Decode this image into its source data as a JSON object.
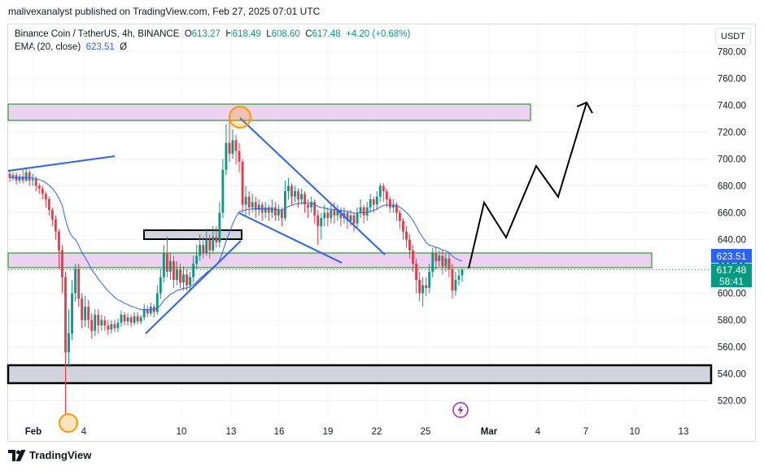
{
  "publisher_line": "malivexanalyst published on TradingView.com, Feb 27, 2025 07:01 UTC",
  "legend": {
    "symbol": "Binance Coin / TetherUS, 4h, BINANCE",
    "o_label": "O",
    "o_value": "613.27",
    "h_label": "H",
    "h_value": "618.49",
    "l_label": "L",
    "l_value": "608.60",
    "c_label": "C",
    "c_value": "617.48",
    "change": "+4.20 (+0.68%)"
  },
  "indicator": {
    "label": "EMA (20, close)",
    "value": "623.51",
    "icon": "Ø"
  },
  "currency_button": "USDT",
  "footer": {
    "brand": "TradingView",
    "logo_icon": "tradingview-logo-icon"
  },
  "colors": {
    "up": "#089981",
    "down": "#f23645",
    "ema": "#2962ff",
    "zone_fill": "#ecd2f0",
    "zone_border": "#4caf50"
  },
  "chart_data": {
    "type": "candlestick",
    "y_axis": {
      "ticks": [
        520,
        540,
        560,
        580,
        600,
        620,
        640,
        660,
        680,
        700,
        720,
        740,
        760,
        780
      ],
      "range": [
        510,
        788
      ]
    },
    "x_axis": {
      "ticks": [
        "Feb",
        "4",
        "10",
        "13",
        "16",
        "19",
        "22",
        "25",
        "Mar",
        "4",
        "7",
        "10",
        "13"
      ]
    },
    "price_labels": {
      "ema": "623.51",
      "close": "617.48",
      "countdown": "58:41"
    },
    "close_candles": [
      {
        "o": 689,
        "c": 686,
        "h": 692,
        "l": 683
      },
      {
        "o": 686,
        "c": 688,
        "h": 690,
        "l": 684
      },
      {
        "o": 688,
        "c": 684,
        "h": 690,
        "l": 681
      },
      {
        "o": 684,
        "c": 687,
        "h": 689,
        "l": 682
      },
      {
        "o": 687,
        "c": 684,
        "h": 692,
        "l": 682
      },
      {
        "o": 684,
        "c": 690,
        "h": 694,
        "l": 683
      },
      {
        "o": 690,
        "c": 684,
        "h": 692,
        "l": 680
      },
      {
        "o": 684,
        "c": 685,
        "h": 689,
        "l": 680
      },
      {
        "o": 685,
        "c": 680,
        "h": 687,
        "l": 676
      },
      {
        "o": 680,
        "c": 678,
        "h": 682,
        "l": 674
      },
      {
        "o": 678,
        "c": 674,
        "h": 680,
        "l": 670
      },
      {
        "o": 674,
        "c": 670,
        "h": 676,
        "l": 664
      },
      {
        "o": 670,
        "c": 662,
        "h": 672,
        "l": 658
      },
      {
        "o": 662,
        "c": 655,
        "h": 664,
        "l": 650
      },
      {
        "o": 655,
        "c": 646,
        "h": 658,
        "l": 640
      },
      {
        "o": 646,
        "c": 632,
        "h": 648,
        "l": 618
      },
      {
        "o": 632,
        "c": 612,
        "h": 636,
        "l": 600
      },
      {
        "o": 612,
        "c": 556,
        "h": 616,
        "l": 510
      },
      {
        "o": 556,
        "c": 570,
        "h": 588,
        "l": 545
      },
      {
        "o": 570,
        "c": 600,
        "h": 610,
        "l": 565
      },
      {
        "o": 600,
        "c": 618,
        "h": 622,
        "l": 594
      },
      {
        "o": 618,
        "c": 596,
        "h": 622,
        "l": 590
      },
      {
        "o": 596,
        "c": 580,
        "h": 600,
        "l": 574
      },
      {
        "o": 580,
        "c": 590,
        "h": 598,
        "l": 575
      },
      {
        "o": 590,
        "c": 580,
        "h": 595,
        "l": 574
      },
      {
        "o": 580,
        "c": 572,
        "h": 585,
        "l": 566
      },
      {
        "o": 572,
        "c": 584,
        "h": 588,
        "l": 568
      },
      {
        "o": 584,
        "c": 576,
        "h": 588,
        "l": 570
      },
      {
        "o": 576,
        "c": 580,
        "h": 584,
        "l": 572
      },
      {
        "o": 580,
        "c": 576,
        "h": 583,
        "l": 572
      },
      {
        "o": 576,
        "c": 573,
        "h": 580,
        "l": 569
      },
      {
        "o": 573,
        "c": 577,
        "h": 580,
        "l": 570
      },
      {
        "o": 577,
        "c": 574,
        "h": 580,
        "l": 571
      },
      {
        "o": 574,
        "c": 578,
        "h": 581,
        "l": 571
      },
      {
        "o": 578,
        "c": 584,
        "h": 587,
        "l": 575
      },
      {
        "o": 584,
        "c": 579,
        "h": 586,
        "l": 576
      },
      {
        "o": 579,
        "c": 582,
        "h": 585,
        "l": 576
      },
      {
        "o": 582,
        "c": 578,
        "h": 584,
        "l": 575
      },
      {
        "o": 578,
        "c": 583,
        "h": 586,
        "l": 576
      },
      {
        "o": 583,
        "c": 579,
        "h": 586,
        "l": 577
      },
      {
        "o": 579,
        "c": 582,
        "h": 584,
        "l": 577
      },
      {
        "o": 582,
        "c": 588,
        "h": 592,
        "l": 580
      },
      {
        "o": 588,
        "c": 585,
        "h": 591,
        "l": 582
      },
      {
        "o": 585,
        "c": 590,
        "h": 593,
        "l": 583
      },
      {
        "o": 590,
        "c": 586,
        "h": 592,
        "l": 582
      },
      {
        "o": 586,
        "c": 600,
        "h": 606,
        "l": 584
      },
      {
        "o": 600,
        "c": 612,
        "h": 618,
        "l": 596
      },
      {
        "o": 612,
        "c": 630,
        "h": 636,
        "l": 608
      },
      {
        "o": 630,
        "c": 616,
        "h": 642,
        "l": 612
      },
      {
        "o": 616,
        "c": 624,
        "h": 630,
        "l": 610
      },
      {
        "o": 624,
        "c": 610,
        "h": 628,
        "l": 604
      },
      {
        "o": 610,
        "c": 618,
        "h": 624,
        "l": 606
      },
      {
        "o": 618,
        "c": 608,
        "h": 622,
        "l": 604
      },
      {
        "o": 608,
        "c": 614,
        "h": 620,
        "l": 602
      },
      {
        "o": 614,
        "c": 606,
        "h": 618,
        "l": 602
      },
      {
        "o": 606,
        "c": 612,
        "h": 616,
        "l": 602
      },
      {
        "o": 612,
        "c": 622,
        "h": 628,
        "l": 608
      },
      {
        "o": 622,
        "c": 628,
        "h": 636,
        "l": 618
      },
      {
        "o": 628,
        "c": 636,
        "h": 644,
        "l": 624
      },
      {
        "o": 636,
        "c": 630,
        "h": 642,
        "l": 626
      },
      {
        "o": 630,
        "c": 640,
        "h": 648,
        "l": 628
      },
      {
        "o": 640,
        "c": 632,
        "h": 644,
        "l": 626
      },
      {
        "o": 632,
        "c": 642,
        "h": 650,
        "l": 630
      },
      {
        "o": 642,
        "c": 638,
        "h": 650,
        "l": 634
      },
      {
        "o": 638,
        "c": 660,
        "h": 668,
        "l": 634
      },
      {
        "o": 660,
        "c": 692,
        "h": 700,
        "l": 656
      },
      {
        "o": 692,
        "c": 712,
        "h": 726,
        "l": 688
      },
      {
        "o": 712,
        "c": 704,
        "h": 732,
        "l": 698
      },
      {
        "o": 704,
        "c": 714,
        "h": 722,
        "l": 700
      },
      {
        "o": 714,
        "c": 706,
        "h": 718,
        "l": 696
      },
      {
        "o": 706,
        "c": 698,
        "h": 712,
        "l": 690
      },
      {
        "o": 698,
        "c": 666,
        "h": 700,
        "l": 660
      },
      {
        "o": 666,
        "c": 672,
        "h": 680,
        "l": 658
      },
      {
        "o": 672,
        "c": 664,
        "h": 676,
        "l": 658
      },
      {
        "o": 664,
        "c": 668,
        "h": 674,
        "l": 660
      },
      {
        "o": 668,
        "c": 662,
        "h": 672,
        "l": 656
      },
      {
        "o": 662,
        "c": 666,
        "h": 670,
        "l": 658
      },
      {
        "o": 666,
        "c": 660,
        "h": 668,
        "l": 654
      },
      {
        "o": 660,
        "c": 664,
        "h": 668,
        "l": 656
      },
      {
        "o": 664,
        "c": 660,
        "h": 666,
        "l": 654
      },
      {
        "o": 660,
        "c": 664,
        "h": 670,
        "l": 656
      },
      {
        "o": 664,
        "c": 658,
        "h": 668,
        "l": 654
      },
      {
        "o": 658,
        "c": 662,
        "h": 666,
        "l": 654
      },
      {
        "o": 662,
        "c": 656,
        "h": 664,
        "l": 650
      },
      {
        "o": 656,
        "c": 676,
        "h": 684,
        "l": 654
      },
      {
        "o": 676,
        "c": 680,
        "h": 686,
        "l": 670
      },
      {
        "o": 680,
        "c": 672,
        "h": 682,
        "l": 666
      },
      {
        "o": 672,
        "c": 676,
        "h": 680,
        "l": 668
      },
      {
        "o": 676,
        "c": 670,
        "h": 678,
        "l": 664
      },
      {
        "o": 670,
        "c": 674,
        "h": 678,
        "l": 666
      },
      {
        "o": 674,
        "c": 666,
        "h": 676,
        "l": 660
      },
      {
        "o": 666,
        "c": 664,
        "h": 670,
        "l": 656
      },
      {
        "o": 664,
        "c": 668,
        "h": 672,
        "l": 660
      },
      {
        "o": 668,
        "c": 658,
        "h": 670,
        "l": 652
      },
      {
        "o": 658,
        "c": 650,
        "h": 662,
        "l": 636
      },
      {
        "o": 650,
        "c": 656,
        "h": 660,
        "l": 640
      },
      {
        "o": 656,
        "c": 660,
        "h": 666,
        "l": 650
      },
      {
        "o": 660,
        "c": 656,
        "h": 664,
        "l": 650
      },
      {
        "o": 656,
        "c": 662,
        "h": 666,
        "l": 652
      },
      {
        "o": 662,
        "c": 658,
        "h": 668,
        "l": 652
      },
      {
        "o": 658,
        "c": 662,
        "h": 666,
        "l": 654
      },
      {
        "o": 662,
        "c": 656,
        "h": 664,
        "l": 650
      },
      {
        "o": 656,
        "c": 660,
        "h": 664,
        "l": 652
      },
      {
        "o": 660,
        "c": 654,
        "h": 662,
        "l": 648
      },
      {
        "o": 654,
        "c": 658,
        "h": 662,
        "l": 650
      },
      {
        "o": 658,
        "c": 652,
        "h": 660,
        "l": 646
      },
      {
        "o": 652,
        "c": 660,
        "h": 664,
        "l": 648
      },
      {
        "o": 660,
        "c": 664,
        "h": 670,
        "l": 656
      },
      {
        "o": 664,
        "c": 658,
        "h": 666,
        "l": 652
      },
      {
        "o": 658,
        "c": 664,
        "h": 668,
        "l": 654
      },
      {
        "o": 664,
        "c": 670,
        "h": 674,
        "l": 660
      },
      {
        "o": 670,
        "c": 666,
        "h": 672,
        "l": 660
      },
      {
        "o": 666,
        "c": 672,
        "h": 676,
        "l": 662
      },
      {
        "o": 672,
        "c": 680,
        "h": 682,
        "l": 668
      },
      {
        "o": 680,
        "c": 676,
        "h": 682,
        "l": 668
      },
      {
        "o": 676,
        "c": 670,
        "h": 678,
        "l": 664
      },
      {
        "o": 670,
        "c": 664,
        "h": 672,
        "l": 660
      },
      {
        "o": 664,
        "c": 666,
        "h": 670,
        "l": 660
      },
      {
        "o": 666,
        "c": 660,
        "h": 668,
        "l": 654
      },
      {
        "o": 660,
        "c": 654,
        "h": 662,
        "l": 648
      },
      {
        "o": 654,
        "c": 646,
        "h": 656,
        "l": 640
      },
      {
        "o": 646,
        "c": 640,
        "h": 650,
        "l": 634
      },
      {
        "o": 640,
        "c": 632,
        "h": 644,
        "l": 626
      },
      {
        "o": 632,
        "c": 622,
        "h": 636,
        "l": 616
      },
      {
        "o": 622,
        "c": 610,
        "h": 626,
        "l": 600
      },
      {
        "o": 610,
        "c": 600,
        "h": 616,
        "l": 594
      },
      {
        "o": 600,
        "c": 606,
        "h": 612,
        "l": 590
      },
      {
        "o": 606,
        "c": 604,
        "h": 612,
        "l": 598
      },
      {
        "o": 604,
        "c": 616,
        "h": 622,
        "l": 600
      },
      {
        "o": 616,
        "c": 630,
        "h": 634,
        "l": 612
      },
      {
        "o": 630,
        "c": 624,
        "h": 634,
        "l": 618
      },
      {
        "o": 624,
        "c": 628,
        "h": 632,
        "l": 620
      },
      {
        "o": 628,
        "c": 620,
        "h": 632,
        "l": 614
      },
      {
        "o": 620,
        "c": 626,
        "h": 630,
        "l": 616
      },
      {
        "o": 626,
        "c": 618,
        "h": 630,
        "l": 612
      },
      {
        "o": 618,
        "c": 602,
        "h": 622,
        "l": 596
      },
      {
        "o": 602,
        "c": 610,
        "h": 616,
        "l": 598
      },
      {
        "o": 610,
        "c": 613,
        "h": 618,
        "l": 606
      },
      {
        "o": 613.27,
        "c": 617.48,
        "h": 618.49,
        "l": 608.6
      }
    ]
  }
}
